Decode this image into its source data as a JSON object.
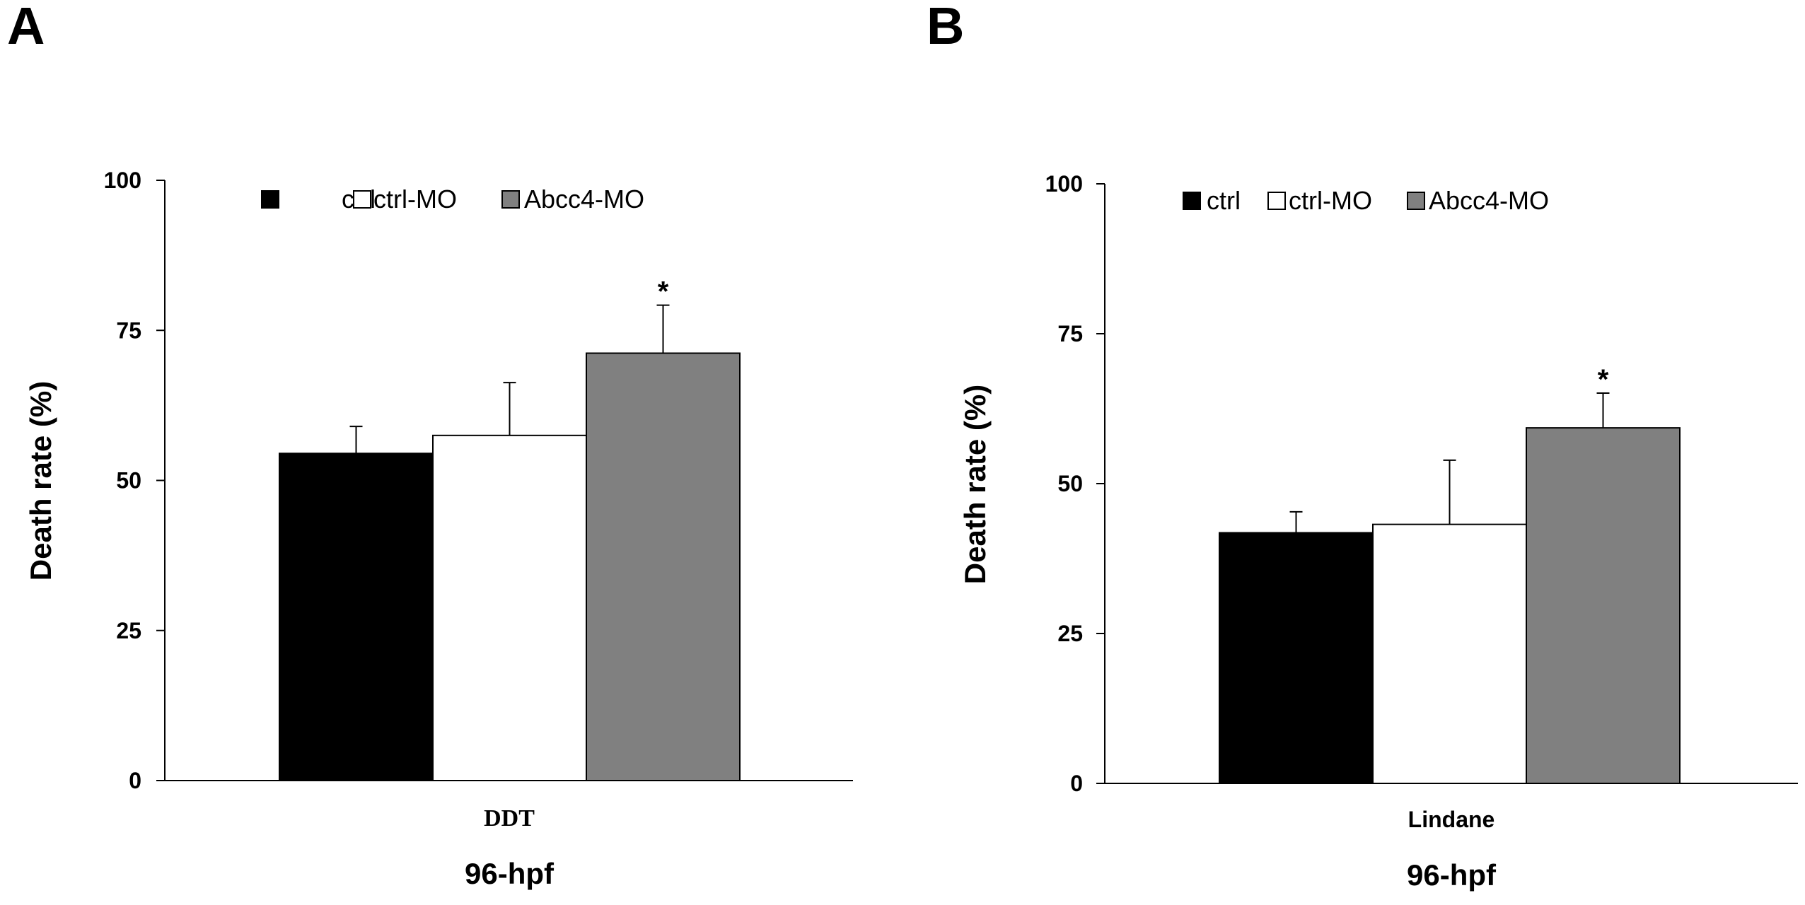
{
  "colors": {
    "ctrl": "#000000",
    "ctrl-MO": "#ffffff",
    "Abcc4-MO": "#808080",
    "axis": "#000000"
  },
  "chart_data": [
    {
      "type": "bar",
      "panel_label": "A",
      "categories": [
        "DDT"
      ],
      "category_font": "serif",
      "xlabel": "96-hpf",
      "ylabel": "Death rate (%)",
      "ylim": [
        0,
        100
      ],
      "yticks": [
        0,
        25,
        50,
        75,
        100
      ],
      "grid": false,
      "legend_position": "top",
      "series": [
        {
          "name": "ctrl",
          "values": [
            54.5
          ],
          "error": [
            4.5
          ],
          "significance": ""
        },
        {
          "name": "ctrl-MO",
          "values": [
            57.5
          ],
          "error": [
            8.8
          ],
          "significance": ""
        },
        {
          "name": "Abcc4-MO",
          "values": [
            71.2
          ],
          "error": [
            8.0
          ],
          "significance": "*"
        }
      ]
    },
    {
      "type": "bar",
      "panel_label": "B",
      "categories": [
        "Lindane"
      ],
      "category_font": "sans",
      "xlabel": "96-hpf",
      "ylabel": "Death rate (%)",
      "ylim": [
        0,
        100
      ],
      "yticks": [
        0,
        25,
        50,
        75,
        100
      ],
      "grid": false,
      "legend_position": "top",
      "series": [
        {
          "name": "ctrl",
          "values": [
            41.8
          ],
          "error": [
            3.5
          ],
          "significance": ""
        },
        {
          "name": "ctrl-MO",
          "values": [
            43.2
          ],
          "error": [
            10.7
          ],
          "significance": ""
        },
        {
          "name": "Abcc4-MO",
          "values": [
            59.3
          ],
          "error": [
            5.8
          ],
          "significance": "*"
        }
      ]
    }
  ]
}
